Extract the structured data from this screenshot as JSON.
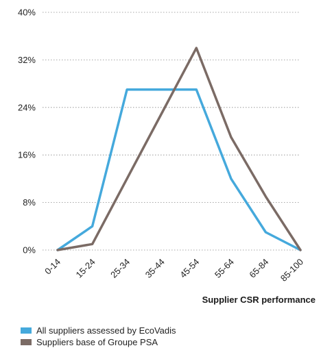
{
  "chart_data": {
    "type": "line",
    "xlabel": "Supplier CSR performance",
    "ylabel": "",
    "categories": [
      "0-14",
      "15-24",
      "25-34",
      "35-44",
      "45-54",
      "55-64",
      "65-84",
      "85-100"
    ],
    "ylim": [
      0,
      40
    ],
    "yticks": [
      "0%",
      "8%",
      "16%",
      "24%",
      "32%",
      "40%"
    ],
    "ytick_values": [
      0,
      8,
      16,
      24,
      32,
      40
    ],
    "grid": "horizontal dotted",
    "legend_position": "bottom-left",
    "series": [
      {
        "name": "All suppliers assessed by EcoVadis",
        "color": "#45a9dc",
        "values": [
          0,
          4,
          27,
          27,
          27,
          12,
          3,
          0
        ]
      },
      {
        "name": "Suppliers base of Groupe PSA",
        "color": "#7b6b65",
        "values": [
          0,
          1,
          12,
          23,
          34,
          19,
          9,
          0
        ]
      }
    ]
  }
}
